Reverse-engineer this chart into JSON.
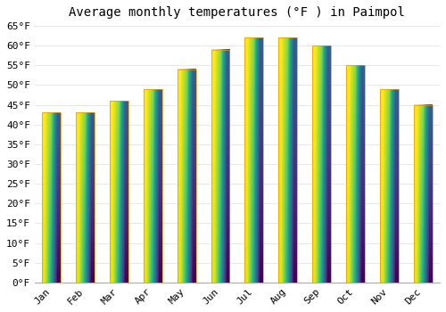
{
  "title": "Average monthly temperatures (°F ) in Paimpol",
  "months": [
    "Jan",
    "Feb",
    "Mar",
    "Apr",
    "May",
    "Jun",
    "Jul",
    "Aug",
    "Sep",
    "Oct",
    "Nov",
    "Dec"
  ],
  "values": [
    43,
    43,
    46,
    49,
    54,
    59,
    62,
    62,
    60,
    55,
    49,
    45
  ],
  "bar_color_bottom": "#F5A623",
  "bar_color_top": "#FFD966",
  "bar_edge_color": "#E8960A",
  "ylim": [
    0,
    65
  ],
  "yticks": [
    0,
    5,
    10,
    15,
    20,
    25,
    30,
    35,
    40,
    45,
    50,
    55,
    60,
    65
  ],
  "ylabel_suffix": "°F",
  "background_color": "#FFFFFF",
  "grid_color": "#E8E8E8",
  "title_fontsize": 10,
  "tick_fontsize": 8,
  "font_family": "monospace",
  "bar_width": 0.55
}
